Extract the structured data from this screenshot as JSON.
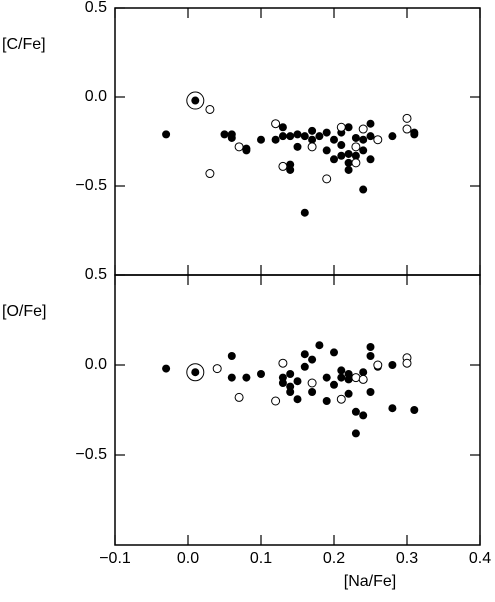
{
  "chart_data": [
    {
      "type": "scatter",
      "ylabel": "[C/Fe]",
      "xlim": [
        -0.1,
        0.4
      ],
      "ylim": [
        -1.0,
        0.5
      ],
      "xticks": [
        -0.1,
        0.0,
        0.1,
        0.2,
        0.3,
        0.4
      ],
      "xtick_labels": false,
      "yticks": [
        0.5,
        {
          "value": 0.0,
          "label": "0.0"
        },
        {
          "value": -0.5,
          "label": "−0.5"
        }
      ],
      "series": [
        {
          "marker": "filled",
          "color": "#000000",
          "x": [
            -0.03,
            0.05,
            0.06,
            0.06,
            0.08,
            0.08,
            0.1,
            0.12,
            0.13,
            0.13,
            0.14,
            0.14,
            0.14,
            0.15,
            0.15,
            0.16,
            0.16,
            0.17,
            0.17,
            0.18,
            0.19,
            0.19,
            0.2,
            0.2,
            0.21,
            0.21,
            0.22,
            0.22,
            0.22,
            0.23,
            0.23,
            0.24,
            0.24,
            0.24,
            0.25,
            0.25,
            0.25,
            0.26,
            0.28,
            0.31,
            0.31,
            0.22,
            0.21
          ],
          "y": [
            -0.21,
            -0.21,
            -0.21,
            -0.23,
            -0.29,
            -0.3,
            -0.24,
            -0.24,
            -0.17,
            -0.22,
            -0.22,
            -0.38,
            -0.41,
            -0.28,
            -0.21,
            -0.22,
            -0.65,
            -0.24,
            -0.19,
            -0.22,
            -0.3,
            -0.2,
            -0.24,
            -0.35,
            -0.2,
            -0.27,
            -0.17,
            -0.32,
            -0.41,
            -0.23,
            -0.33,
            -0.24,
            -0.52,
            -0.3,
            -0.15,
            -0.35,
            -0.22,
            -0.24,
            -0.22,
            -0.2,
            -0.21,
            -0.37,
            -0.33
          ]
        },
        {
          "marker": "open",
          "color": "#000000",
          "x": [
            0.03,
            0.03,
            0.07,
            0.12,
            0.13,
            0.17,
            0.19,
            0.21,
            0.23,
            0.23,
            0.24,
            0.26,
            0.3,
            0.3
          ],
          "y": [
            -0.07,
            -0.43,
            -0.28,
            -0.15,
            -0.39,
            -0.28,
            -0.46,
            -0.17,
            -0.28,
            -0.37,
            -0.18,
            -0.24,
            -0.12,
            -0.18
          ]
        },
        {
          "marker": "sun",
          "color": "#000000",
          "x": [
            0.01
          ],
          "y": [
            -0.02
          ]
        }
      ]
    },
    {
      "type": "scatter",
      "ylabel": "[O/Fe]",
      "xlabel": "[Na/Fe]",
      "xlim": [
        -0.1,
        0.4
      ],
      "ylim": [
        -1.0,
        0.5
      ],
      "xticks": [
        {
          "value": -0.1,
          "label": "−0.1"
        },
        {
          "value": 0.0,
          "label": "0.0"
        },
        0.1,
        0.2,
        0.3,
        0.4
      ],
      "xtick_labels": true,
      "yticks": [
        0.5,
        {
          "value": 0.0,
          "label": "0.0"
        },
        {
          "value": -0.5,
          "label": "−0.5"
        }
      ],
      "series": [
        {
          "marker": "filled",
          "color": "#000000",
          "x": [
            -0.03,
            0.06,
            0.06,
            0.08,
            0.1,
            0.13,
            0.13,
            0.14,
            0.14,
            0.14,
            0.15,
            0.15,
            0.16,
            0.16,
            0.17,
            0.17,
            0.18,
            0.19,
            0.19,
            0.2,
            0.2,
            0.21,
            0.21,
            0.22,
            0.22,
            0.22,
            0.23,
            0.23,
            0.24,
            0.24,
            0.25,
            0.25,
            0.25,
            0.26,
            0.28,
            0.28,
            0.31,
            0.23
          ],
          "y": [
            -0.02,
            0.05,
            -0.07,
            -0.07,
            -0.05,
            -0.07,
            -0.1,
            -0.12,
            -0.15,
            -0.05,
            -0.09,
            -0.19,
            0.06,
            -0.01,
            0.03,
            -0.15,
            0.11,
            -0.07,
            -0.2,
            0.07,
            -0.11,
            -0.07,
            -0.03,
            -0.05,
            -0.16,
            -0.08,
            -0.26,
            -0.38,
            -0.28,
            -0.04,
            0.1,
            0.05,
            -0.15,
            -0.01,
            -0.24,
            0.0,
            -0.25,
            -0.07
          ]
        },
        {
          "marker": "open",
          "color": "#000000",
          "x": [
            0.04,
            0.07,
            0.12,
            0.13,
            0.17,
            0.21,
            0.23,
            0.24,
            0.26,
            0.3,
            0.3
          ],
          "y": [
            -0.02,
            -0.18,
            -0.2,
            0.01,
            -0.1,
            -0.19,
            -0.07,
            -0.08,
            0.0,
            0.04,
            0.01
          ]
        },
        {
          "marker": "sun",
          "color": "#000000",
          "x": [
            0.01
          ],
          "y": [
            -0.04
          ]
        }
      ]
    }
  ]
}
